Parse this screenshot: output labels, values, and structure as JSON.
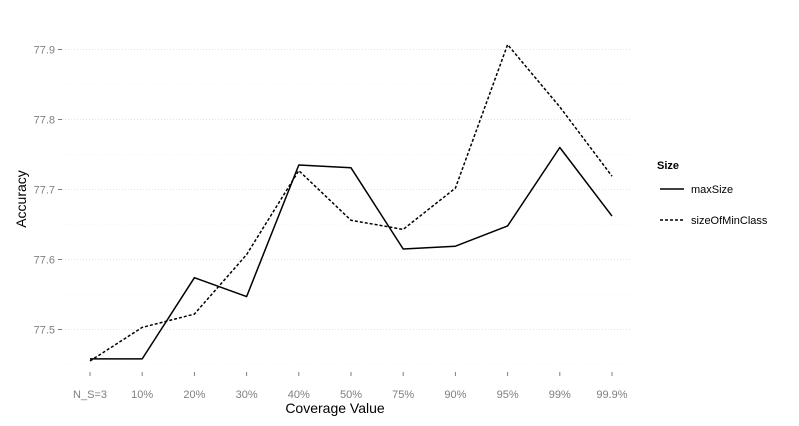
{
  "chart_data": {
    "type": "line",
    "title": "",
    "xlabel": "Coverage Value",
    "ylabel": "Accuracy",
    "categories": [
      "N_S=3",
      "10%",
      "20%",
      "30%",
      "40%",
      "50%",
      "75%",
      "90%",
      "95%",
      "99%",
      "99.9%"
    ],
    "ylim": [
      77.445,
      77.945
    ],
    "yticks": [
      "77.5",
      "77.6",
      "77.7",
      "77.8",
      "77.9"
    ],
    "grid": true,
    "legend": {
      "title": "Size",
      "position": "right"
    },
    "series": [
      {
        "name": "maxSize",
        "line_style": "solid",
        "color": "#000000",
        "values": [
          77.458,
          77.458,
          77.574,
          77.547,
          77.735,
          77.731,
          77.615,
          77.619,
          77.648,
          77.76,
          77.662
        ]
      },
      {
        "name": "sizeOfMinClass",
        "line_style": "dashed",
        "color": "#000000",
        "values": [
          77.455,
          77.503,
          77.522,
          77.607,
          77.727,
          77.656,
          77.643,
          77.702,
          77.907,
          77.818,
          77.719
        ]
      }
    ]
  }
}
